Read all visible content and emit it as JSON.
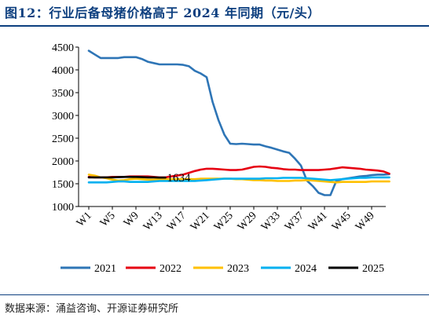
{
  "title": "图12：行业后备母猪价格高于 2024 年同期（元/头）",
  "source": "数据来源：涌益咨询、开源证券研究所",
  "chart_data": {
    "type": "line",
    "title": "图12：行业后备母猪价格高于 2024 年同期（元/头）",
    "xlabel": "",
    "ylabel": "",
    "ylim": [
      1000,
      4500
    ],
    "yticks": [
      1000,
      1500,
      2000,
      2500,
      3000,
      3500,
      4000,
      4500
    ],
    "xlim": [
      1,
      52
    ],
    "xticks": [
      "W1",
      "W5",
      "W9",
      "W13",
      "W17",
      "W21",
      "W25",
      "W29",
      "W33",
      "W37",
      "W41",
      "W45",
      "W49"
    ],
    "xtick_values": [
      1,
      5,
      9,
      13,
      17,
      21,
      25,
      29,
      33,
      37,
      41,
      45,
      49
    ],
    "grid": false,
    "legend": "bottom",
    "annotations": [
      {
        "text": "1634",
        "series": "2025",
        "week": 14
      }
    ],
    "series": [
      {
        "name": "2021",
        "color": "#2e75b6",
        "x": [
          1,
          2,
          3,
          4,
          5,
          6,
          7,
          8,
          9,
          10,
          11,
          12,
          13,
          14,
          15,
          16,
          17,
          18,
          19,
          20,
          21,
          22,
          23,
          24,
          25,
          26,
          27,
          28,
          29,
          30,
          31,
          32,
          33,
          34,
          35,
          36,
          37,
          38,
          39,
          40,
          41,
          42,
          43,
          44,
          45,
          46,
          47,
          48,
          49,
          50,
          51,
          52
        ],
        "values": [
          4420,
          4340,
          4260,
          4260,
          4260,
          4260,
          4280,
          4280,
          4280,
          4240,
          4180,
          4150,
          4120,
          4120,
          4120,
          4120,
          4110,
          4080,
          3980,
          3920,
          3840,
          3300,
          2900,
          2580,
          2380,
          2370,
          2380,
          2370,
          2360,
          2360,
          2320,
          2290,
          2250,
          2210,
          2180,
          2050,
          1900,
          1570,
          1450,
          1300,
          1250,
          1250,
          1560,
          1600,
          1620,
          1640,
          1660,
          1670,
          1690,
          1700,
          1700,
          1710
        ]
      },
      {
        "name": "2022",
        "color": "#e60012",
        "x": [
          1,
          2,
          3,
          4,
          5,
          6,
          7,
          8,
          9,
          10,
          11,
          12,
          13,
          14,
          15,
          16,
          17,
          18,
          19,
          20,
          21,
          22,
          23,
          24,
          25,
          26,
          27,
          28,
          29,
          30,
          31,
          32,
          33,
          34,
          35,
          36,
          37,
          38,
          39,
          40,
          41,
          42,
          43,
          44,
          45,
          46,
          47,
          48,
          49,
          50,
          51,
          52
        ],
        "values": [
          1650,
          1640,
          1640,
          1640,
          1650,
          1650,
          1650,
          1660,
          1660,
          1660,
          1660,
          1650,
          1640,
          1640,
          1660,
          1680,
          1700,
          1740,
          1780,
          1810,
          1830,
          1830,
          1820,
          1810,
          1800,
          1800,
          1810,
          1840,
          1870,
          1880,
          1870,
          1850,
          1840,
          1820,
          1810,
          1810,
          1800,
          1800,
          1800,
          1800,
          1810,
          1820,
          1840,
          1860,
          1850,
          1840,
          1830,
          1810,
          1800,
          1790,
          1770,
          1720
        ]
      },
      {
        "name": "2023",
        "color": "#ffc000",
        "x": [
          1,
          2,
          3,
          4,
          5,
          6,
          7,
          8,
          9,
          10,
          11,
          12,
          13,
          14,
          15,
          16,
          17,
          18,
          19,
          20,
          21,
          22,
          23,
          24,
          25,
          26,
          27,
          28,
          29,
          30,
          31,
          32,
          33,
          34,
          35,
          36,
          37,
          38,
          39,
          40,
          41,
          42,
          43,
          44,
          45,
          46,
          47,
          48,
          49,
          50,
          51,
          52
        ],
        "values": [
          1700,
          1680,
          1640,
          1620,
          1590,
          1570,
          1580,
          1600,
          1610,
          1600,
          1590,
          1590,
          1600,
          1600,
          1600,
          1600,
          1600,
          1600,
          1600,
          1610,
          1610,
          1610,
          1610,
          1610,
          1610,
          1600,
          1600,
          1590,
          1580,
          1580,
          1570,
          1570,
          1560,
          1560,
          1560,
          1570,
          1570,
          1580,
          1570,
          1560,
          1550,
          1540,
          1530,
          1540,
          1540,
          1540,
          1540,
          1540,
          1550,
          1550,
          1550,
          1550
        ]
      },
      {
        "name": "2024",
        "color": "#00b0f0",
        "x": [
          1,
          2,
          3,
          4,
          5,
          6,
          7,
          8,
          9,
          10,
          11,
          12,
          13,
          14,
          15,
          16,
          17,
          18,
          19,
          20,
          21,
          22,
          23,
          24,
          25,
          26,
          27,
          28,
          29,
          30,
          31,
          32,
          33,
          34,
          35,
          36,
          37,
          38,
          39,
          40,
          41,
          42,
          43,
          44,
          45,
          46,
          47,
          48,
          49,
          50,
          51,
          52
        ],
        "values": [
          1530,
          1530,
          1530,
          1530,
          1540,
          1550,
          1550,
          1540,
          1540,
          1540,
          1540,
          1550,
          1560,
          1560,
          1560,
          1560,
          1560,
          1560,
          1560,
          1570,
          1580,
          1590,
          1600,
          1610,
          1610,
          1610,
          1610,
          1610,
          1610,
          1610,
          1620,
          1620,
          1620,
          1630,
          1630,
          1630,
          1630,
          1620,
          1610,
          1600,
          1590,
          1580,
          1590,
          1600,
          1610,
          1620,
          1630,
          1630,
          1640,
          1640,
          1640,
          1640
        ]
      },
      {
        "name": "2025",
        "color": "#000000",
        "x": [
          1,
          2,
          3,
          4,
          5,
          6,
          7,
          8,
          9,
          10,
          11,
          12,
          13,
          14
        ],
        "values": [
          1640,
          1640,
          1640,
          1640,
          1640,
          1645,
          1650,
          1650,
          1650,
          1645,
          1640,
          1640,
          1635,
          1634
        ]
      }
    ]
  }
}
